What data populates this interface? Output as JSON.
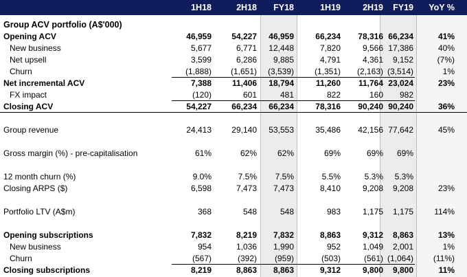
{
  "header": {
    "columns": [
      "1H18",
      "2H18",
      "FY18",
      "1H19",
      "2H19",
      "FY19",
      "YoY %"
    ]
  },
  "rows": [
    {
      "label": "Group ACV portfolio (A$'000)",
      "style": "title",
      "indent": 0,
      "values": [
        "",
        "",
        "",
        "",
        "",
        "",
        ""
      ]
    },
    {
      "label": "Opening ACV",
      "style": "bold",
      "indent": 0,
      "values": [
        "46,959",
        "54,227",
        "46,959",
        "66,234",
        "78,316",
        "66,234",
        "41%"
      ]
    },
    {
      "label": "New business",
      "style": "normal",
      "indent": 1,
      "values": [
        "5,677",
        "6,771",
        "12,448",
        "7,820",
        "9,566",
        "17,386",
        "40%"
      ]
    },
    {
      "label": "Net upsell",
      "style": "normal",
      "indent": 1,
      "values": [
        "3,599",
        "6,286",
        "9,885",
        "4,791",
        "4,361",
        "9,152",
        "(7%)"
      ]
    },
    {
      "label": "Churn",
      "style": "normal",
      "indent": 1,
      "values": [
        "(1,888)",
        "(1,651)",
        "(3,539)",
        "(1,351)",
        "(2,163)",
        "(3,514)",
        "1%"
      ]
    },
    {
      "label": "Net incremental ACV",
      "style": "bold",
      "indent": 0,
      "values": [
        "7,388",
        "11,406",
        "18,794",
        "11,260",
        "11,764",
        "23,024",
        "23%"
      ]
    },
    {
      "label": "FX impact",
      "style": "normal",
      "indent": 1,
      "values": [
        "(120)",
        "601",
        "481",
        "822",
        "160",
        "982",
        ""
      ]
    },
    {
      "label": "Closing ACV",
      "style": "bold",
      "indent": 0,
      "values": [
        "54,227",
        "66,234",
        "66,234",
        "78,316",
        "90,240",
        "90,240",
        "36%"
      ]
    },
    {
      "label": "Group revenue",
      "style": "normal",
      "indent": 0,
      "values": [
        "24,413",
        "29,140",
        "53,553",
        "35,486",
        "42,156",
        "77,642",
        "45%"
      ]
    },
    {
      "label": "Gross margin (%) - pre-capitalisation",
      "style": "normal",
      "indent": 0,
      "values": [
        "61%",
        "62%",
        "62%",
        "69%",
        "69%",
        "69%",
        ""
      ]
    },
    {
      "label": "12 month churn (%)",
      "style": "normal",
      "indent": 0,
      "values": [
        "9.0%",
        "7.5%",
        "7.5%",
        "5.5%",
        "5.3%",
        "5.3%",
        ""
      ]
    },
    {
      "label": "Closing ARPS ($)",
      "style": "normal",
      "indent": 0,
      "values": [
        "6,598",
        "7,473",
        "7,473",
        "8,410",
        "9,208",
        "9,208",
        "23%"
      ]
    },
    {
      "label": "Portfolio LTV (A$m)",
      "style": "normal",
      "indent": 0,
      "values": [
        "368",
        "548",
        "548",
        "983",
        "1,175",
        "1,175",
        "114%"
      ]
    },
    {
      "label": "Opening subscriptions",
      "style": "bold",
      "indent": 0,
      "values": [
        "7,832",
        "8,219",
        "7,832",
        "8,863",
        "9,312",
        "8,863",
        "13%"
      ]
    },
    {
      "label": "New business",
      "style": "normal",
      "indent": 1,
      "values": [
        "954",
        "1,036",
        "1,990",
        "952",
        "1,049",
        "2,001",
        "1%"
      ]
    },
    {
      "label": "Churn",
      "style": "normal",
      "indent": 1,
      "values": [
        "(567)",
        "(392)",
        "(959)",
        "(503)",
        "(561)",
        "(1,064)",
        "(11%)"
      ]
    },
    {
      "label": "Closing subscriptions",
      "style": "bold",
      "indent": 0,
      "values": [
        "8,219",
        "8,863",
        "8,863",
        "9,312",
        "9,800",
        "9,800",
        "11%"
      ]
    }
  ],
  "colors": {
    "header_bg": "#0f1d5c",
    "header_text": "#ffffff",
    "fy_band": "#ececec"
  }
}
